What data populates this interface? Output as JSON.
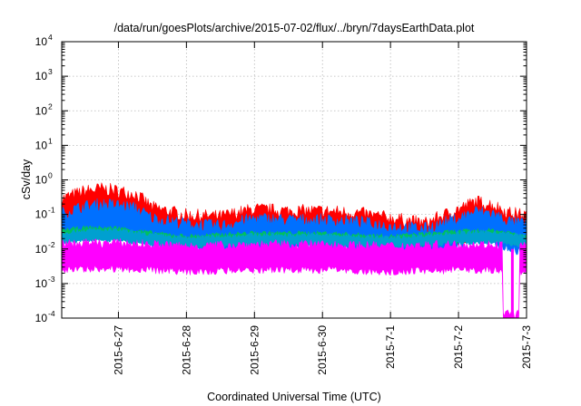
{
  "chart_data": {
    "type": "line",
    "title": "/data/run/goesPlots/archive/2015-07-02/flux/../bryn/7daysEarthData.plot",
    "xlabel": "Coordinated Universal Time (UTC)",
    "ylabel": "cSv/day",
    "x_scale": "time",
    "y_scale": "log",
    "xlim": [
      "2015-06-26T04:00",
      "2015-07-03T00:00"
    ],
    "ylim": [
      0.0001,
      10000
    ],
    "x_ticks": [
      "2015-6-27",
      "2015-6-28",
      "2015-6-29",
      "2015-6-30",
      "2015-7-1",
      "2015-7-2",
      "2015-7-3"
    ],
    "y_ticks": [
      {
        "base": "10",
        "exp": "-4"
      },
      {
        "base": "10",
        "exp": "-3"
      },
      {
        "base": "10",
        "exp": "-2"
      },
      {
        "base": "10",
        "exp": "-1"
      },
      {
        "base": "10",
        "exp": "0"
      },
      {
        "base": "10",
        "exp": "1"
      },
      {
        "base": "10",
        "exp": "2"
      },
      {
        "base": "10",
        "exp": "3"
      },
      {
        "base": "10",
        "exp": "4"
      }
    ],
    "grid": true,
    "legend": "none",
    "series": [
      {
        "color": "#ff0000",
        "x": [
          "2015-06-26T04:00",
          "2015-06-26T12:00",
          "2015-06-26T18:00",
          "2015-06-27T00:00",
          "2015-06-27T06:00",
          "2015-06-27T12:00",
          "2015-06-28T00:00",
          "2015-06-28T12:00",
          "2015-06-29T00:00",
          "2015-06-29T12:00",
          "2015-06-30T00:00",
          "2015-06-30T12:00",
          "2015-07-01T00:00",
          "2015-07-01T12:00",
          "2015-07-02T00:00",
          "2015-07-02T06:00",
          "2015-07-02T12:00",
          "2015-07-02T18:00",
          "2015-07-03T00:00"
        ],
        "values": [
          0.18,
          0.3,
          0.35,
          0.3,
          0.25,
          0.1,
          0.06,
          0.055,
          0.09,
          0.08,
          0.08,
          0.07,
          0.05,
          0.035,
          0.09,
          0.15,
          0.12,
          0.07,
          0.06
        ]
      },
      {
        "color": "#0070ff",
        "x": [
          "2015-06-26T04:00",
          "2015-06-26T12:00",
          "2015-06-26T18:00",
          "2015-06-27T00:00",
          "2015-06-27T06:00",
          "2015-06-27T12:00",
          "2015-06-28T00:00",
          "2015-06-28T12:00",
          "2015-06-29T00:00",
          "2015-06-29T12:00",
          "2015-06-30T00:00",
          "2015-06-30T12:00",
          "2015-07-01T00:00",
          "2015-07-01T12:00",
          "2015-07-02T00:00",
          "2015-07-02T06:00",
          "2015-07-02T12:00",
          "2015-07-02T18:00",
          "2015-07-03T00:00"
        ],
        "values": [
          0.07,
          0.11,
          0.13,
          0.12,
          0.1,
          0.05,
          0.035,
          0.03,
          0.05,
          0.045,
          0.045,
          0.04,
          0.03,
          0.025,
          0.05,
          0.08,
          0.07,
          0.04,
          0.035
        ]
      },
      {
        "color": "#00c060",
        "x": [
          "2015-06-26T04:00",
          "2015-06-26T12:00",
          "2015-06-27T00:00",
          "2015-06-27T12:00",
          "2015-06-28T00:00",
          "2015-06-29T00:00",
          "2015-06-30T00:00",
          "2015-07-01T00:00",
          "2015-07-02T00:00",
          "2015-07-02T12:00",
          "2015-07-03T00:00"
        ],
        "values": [
          0.03,
          0.035,
          0.035,
          0.025,
          0.02,
          0.025,
          0.025,
          0.02,
          0.028,
          0.03,
          0.022
        ]
      },
      {
        "color": "#00a0d0",
        "x": [
          "2015-06-26T04:00",
          "2015-06-26T12:00",
          "2015-06-27T00:00",
          "2015-06-27T12:00",
          "2015-06-28T00:00",
          "2015-06-29T00:00",
          "2015-06-30T00:00",
          "2015-07-01T00:00",
          "2015-07-02T00:00",
          "2015-07-02T12:00",
          "2015-07-03T00:00"
        ],
        "values": [
          0.025,
          0.03,
          0.03,
          0.022,
          0.018,
          0.022,
          0.022,
          0.018,
          0.025,
          0.027,
          0.02
        ]
      },
      {
        "color": "#ff00ff",
        "x": [
          "2015-06-26T04:00",
          "2015-06-26T12:00",
          "2015-06-27T00:00",
          "2015-06-27T12:00",
          "2015-06-28T00:00",
          "2015-06-29T00:00",
          "2015-06-30T00:00",
          "2015-07-01T00:00",
          "2015-07-02T00:00",
          "2015-07-02T12:00",
          "2015-07-02T19:00",
          "2015-07-03T00:00"
        ],
        "values": [
          0.01,
          0.011,
          0.011,
          0.01,
          0.009,
          0.01,
          0.01,
          0.009,
          0.01,
          0.01,
          0.0001,
          0.009
        ]
      }
    ]
  }
}
